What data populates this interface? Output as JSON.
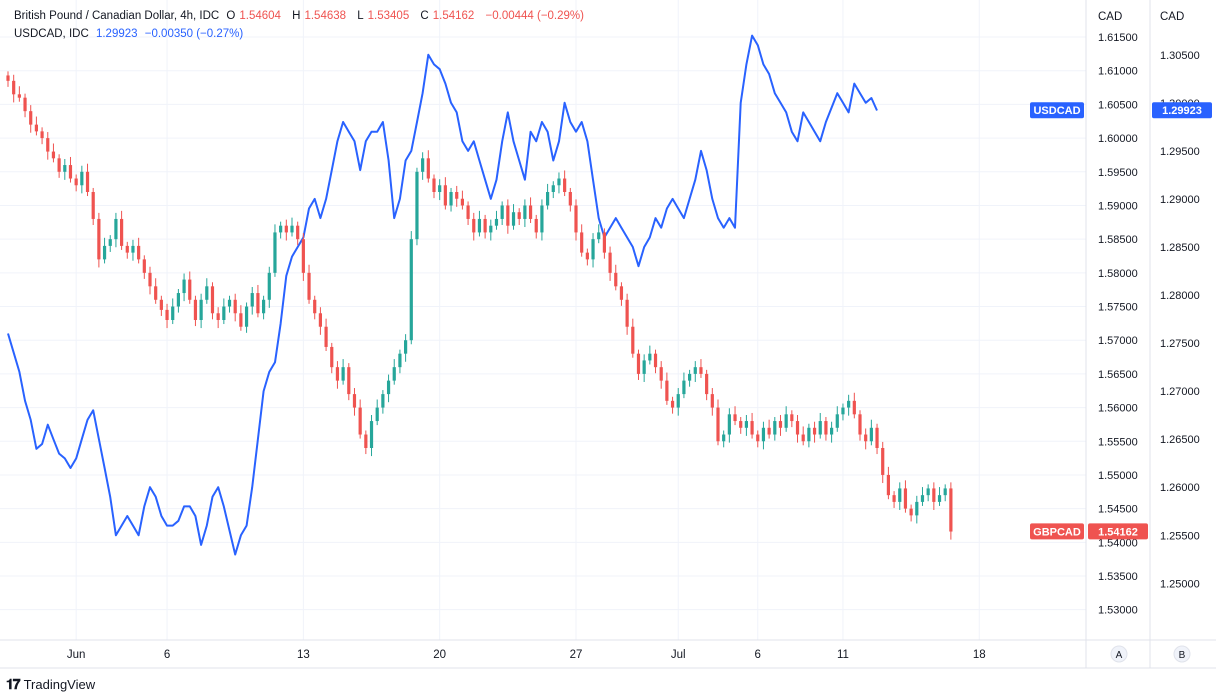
{
  "legend": {
    "main": {
      "symbol": "British Pound / Canadian Dollar, 4h, IDC",
      "o_label": "O",
      "o_value": "1.54604",
      "h_label": "H",
      "h_value": "1.54638",
      "l_label": "L",
      "l_value": "1.53405",
      "c_label": "C",
      "c_value": "1.54162",
      "change": "−0.00444 (−0.29%)"
    },
    "compare": {
      "symbol": "USDCAD, IDC",
      "value": "1.29923",
      "change": "−0.00350 (−0.27%)"
    }
  },
  "scale_a_label": "A",
  "scale_b_label": "B",
  "brand": "TradingView",
  "colors": {
    "up": "#26a69a",
    "down": "#ef5350",
    "line": "#2962ff",
    "grid": "#f0f3fa",
    "axis": "#e0e3eb"
  },
  "chart_data": {
    "type": "candlestick+line",
    "x_labels": [
      {
        "label": "Jun",
        "bar": 12
      },
      {
        "label": "6",
        "bar": 28
      },
      {
        "label": "13",
        "bar": 52
      },
      {
        "label": "20",
        "bar": 76
      },
      {
        "label": "27",
        "bar": 100
      },
      {
        "label": "Jul",
        "bar": 118
      },
      {
        "label": "6",
        "bar": 132
      },
      {
        "label": "11",
        "bar": 147
      },
      {
        "label": "18",
        "bar": 171
      }
    ],
    "left_axis": {
      "title": "CAD",
      "ylim": [
        1.5255,
        1.6205
      ],
      "ticks": [
        "1.61500",
        "1.61000",
        "1.60500",
        "1.60000",
        "1.59500",
        "1.59000",
        "1.58500",
        "1.58000",
        "1.57500",
        "1.57000",
        "1.56500",
        "1.56000",
        "1.55500",
        "1.55000",
        "1.54500",
        "1.54000",
        "1.53500",
        "1.53000"
      ]
    },
    "right_axis": {
      "title": "CAD",
      "ylim": [
        1.2441,
        1.3107
      ],
      "ticks": [
        "1.30500",
        "1.30000",
        "1.29500",
        "1.29000",
        "1.28500",
        "1.28000",
        "1.27500",
        "1.27000",
        "1.26500",
        "1.26000",
        "1.25500",
        "1.25000"
      ]
    },
    "gbpcad": {
      "name": "GBPCAD",
      "last": "1.54162",
      "closes": [
        1.6085,
        1.6065,
        1.606,
        1.604,
        1.602,
        1.601,
        1.6,
        1.598,
        1.597,
        1.595,
        1.596,
        1.594,
        1.593,
        1.595,
        1.592,
        1.588,
        1.582,
        1.584,
        1.585,
        1.588,
        1.584,
        1.583,
        1.584,
        1.582,
        1.58,
        1.578,
        1.576,
        1.5745,
        1.573,
        1.575,
        1.577,
        1.579,
        1.576,
        1.573,
        1.576,
        1.578,
        1.574,
        1.573,
        1.575,
        1.576,
        1.574,
        1.572,
        1.575,
        1.577,
        1.574,
        1.576,
        1.58,
        1.586,
        1.587,
        1.586,
        1.587,
        1.585,
        1.58,
        1.576,
        1.574,
        1.572,
        1.569,
        1.566,
        1.564,
        1.566,
        1.562,
        1.56,
        1.556,
        1.554,
        1.558,
        1.56,
        1.562,
        1.564,
        1.566,
        1.568,
        1.57,
        1.585,
        1.595,
        1.597,
        1.594,
        1.592,
        1.593,
        1.59,
        1.592,
        1.591,
        1.59,
        1.588,
        1.586,
        1.588,
        1.586,
        1.587,
        1.588,
        1.59,
        1.587,
        1.589,
        1.588,
        1.59,
        1.588,
        1.586,
        1.59,
        1.592,
        1.593,
        1.594,
        1.592,
        1.59,
        1.586,
        1.583,
        1.582,
        1.585,
        1.586,
        1.583,
        1.58,
        1.578,
        1.576,
        1.572,
        1.568,
        1.565,
        1.567,
        1.568,
        1.566,
        1.564,
        1.561,
        1.56,
        1.562,
        1.564,
        1.565,
        1.566,
        1.565,
        1.562,
        1.56,
        1.555,
        1.556,
        1.559,
        1.558,
        1.557,
        1.558,
        1.556,
        1.555,
        1.557,
        1.556,
        1.558,
        1.557,
        1.559,
        1.558,
        1.556,
        1.555,
        1.557,
        1.556,
        1.558,
        1.556,
        1.557,
        1.559,
        1.56,
        1.561,
        1.559,
        1.556,
        1.555,
        1.557,
        1.554,
        1.55,
        1.547,
        1.546,
        1.548,
        1.545,
        1.544,
        1.546,
        1.547,
        1.548,
        1.546,
        1.547,
        1.548,
        1.5416
      ]
    },
    "usdcad": {
      "name": "USDCAD",
      "last": "1.29923",
      "values": [
        1.276,
        1.274,
        1.272,
        1.269,
        1.267,
        1.264,
        1.2645,
        1.2665,
        1.265,
        1.2635,
        1.263,
        1.262,
        1.263,
        1.265,
        1.267,
        1.268,
        1.265,
        1.262,
        1.259,
        1.255,
        1.256,
        1.257,
        1.256,
        1.255,
        1.258,
        1.26,
        1.259,
        1.257,
        1.256,
        1.256,
        1.2565,
        1.258,
        1.258,
        1.257,
        1.254,
        1.256,
        1.259,
        1.26,
        1.258,
        1.2555,
        1.253,
        1.255,
        1.256,
        1.26,
        1.265,
        1.27,
        1.272,
        1.273,
        1.277,
        1.282,
        1.284,
        1.285,
        1.286,
        1.289,
        1.29,
        1.288,
        1.29,
        1.293,
        1.296,
        1.298,
        1.297,
        1.296,
        1.293,
        1.296,
        1.297,
        1.297,
        1.298,
        1.294,
        1.288,
        1.29,
        1.294,
        1.295,
        1.298,
        1.301,
        1.305,
        1.304,
        1.3035,
        1.302,
        1.3,
        1.299,
        1.296,
        1.295,
        1.296,
        1.294,
        1.292,
        1.29,
        1.292,
        1.296,
        1.299,
        1.296,
        1.294,
        1.292,
        1.297,
        1.296,
        1.298,
        1.297,
        1.294,
        1.296,
        1.3,
        1.298,
        1.297,
        1.298,
        1.296,
        1.292,
        1.288,
        1.286,
        1.287,
        1.288,
        1.287,
        1.286,
        1.285,
        1.283,
        1.285,
        1.286,
        1.288,
        1.287,
        1.289,
        1.29,
        1.289,
        1.288,
        1.29,
        1.292,
        1.295,
        1.293,
        1.29,
        1.288,
        1.287,
        1.288,
        1.287,
        1.3,
        1.304,
        1.307,
        1.306,
        1.304,
        1.303,
        1.301,
        1.3,
        1.299,
        1.297,
        1.296,
        1.299,
        1.298,
        1.297,
        1.296,
        1.298,
        1.2995,
        1.301,
        1.3,
        1.299,
        1.302,
        1.301,
        1.3,
        1.3005,
        1.2992
      ]
    }
  }
}
